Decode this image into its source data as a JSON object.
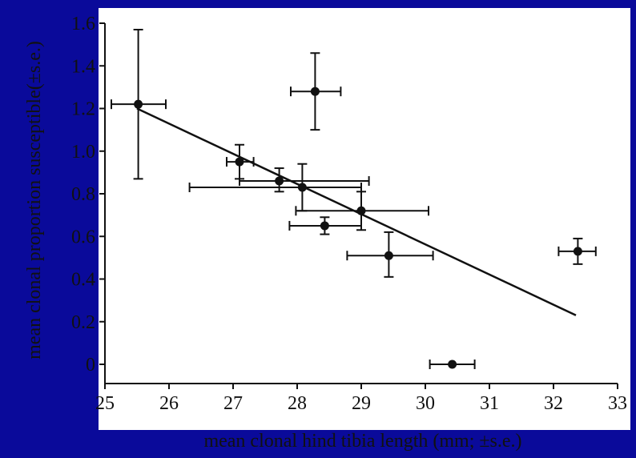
{
  "colors": {
    "background": "#0a0a9a",
    "panel": "#ffffff",
    "ink": "#111111"
  },
  "chart_data": {
    "type": "scatter",
    "title": "",
    "xlabel": "mean clonal hind tibia length (mm; ±s.e.)",
    "ylabel": "mean clonal proportion susceptible(±s.e.)",
    "xlim": [
      25,
      33
    ],
    "ylim": [
      -0.1,
      1.6
    ],
    "x_ticks": [
      25,
      26,
      27,
      28,
      29,
      30,
      31,
      32,
      33
    ],
    "y_ticks": [
      0,
      0.2,
      0.4,
      0.6,
      0.8,
      1.0,
      1.2,
      1.4,
      1.6
    ],
    "x_tick_labels": [
      "25",
      "26",
      "27",
      "28",
      "29",
      "30",
      "31",
      "32",
      "33"
    ],
    "y_tick_labels": [
      "0",
      "0.2",
      "0.4",
      "0.6",
      "0.8",
      "1.0",
      "1.2",
      "1.4",
      "1.6"
    ],
    "grid": false,
    "points": [
      {
        "x": 25.52,
        "y": 1.22,
        "x_err": [
          25.1,
          25.95
        ],
        "y_err": [
          0.87,
          1.57
        ]
      },
      {
        "x": 28.28,
        "y": 1.28,
        "x_err": [
          27.9,
          28.68
        ],
        "y_err": [
          1.1,
          1.46
        ]
      },
      {
        "x": 27.1,
        "y": 0.95,
        "x_err": [
          26.9,
          27.32
        ],
        "y_err": [
          0.87,
          1.03
        ]
      },
      {
        "x": 27.72,
        "y": 0.86,
        "x_err": [
          27.1,
          29.12
        ],
        "y_err": [
          0.81,
          0.92
        ]
      },
      {
        "x": 28.08,
        "y": 0.83,
        "x_err": [
          26.32,
          29.0
        ],
        "y_err": [
          0.72,
          0.94
        ]
      },
      {
        "x": 29.0,
        "y": 0.72,
        "x_err": [
          27.98,
          30.05
        ],
        "y_err": [
          0.63,
          0.81
        ]
      },
      {
        "x": 28.43,
        "y": 0.65,
        "x_err": [
          27.88,
          29.0
        ],
        "y_err": [
          0.61,
          0.69
        ]
      },
      {
        "x": 29.43,
        "y": 0.51,
        "x_err": [
          28.78,
          30.12
        ],
        "y_err": [
          0.41,
          0.62
        ]
      },
      {
        "x": 32.38,
        "y": 0.53,
        "x_err": [
          32.08,
          32.66
        ],
        "y_err": [
          0.47,
          0.59
        ]
      },
      {
        "x": 30.42,
        "y": 0.0,
        "x_err": [
          30.07,
          30.77
        ],
        "y_err": [
          0.0,
          0.0
        ]
      }
    ],
    "trendline": {
      "x": [
        25.5,
        32.35
      ],
      "y": [
        1.2,
        0.23
      ]
    }
  }
}
